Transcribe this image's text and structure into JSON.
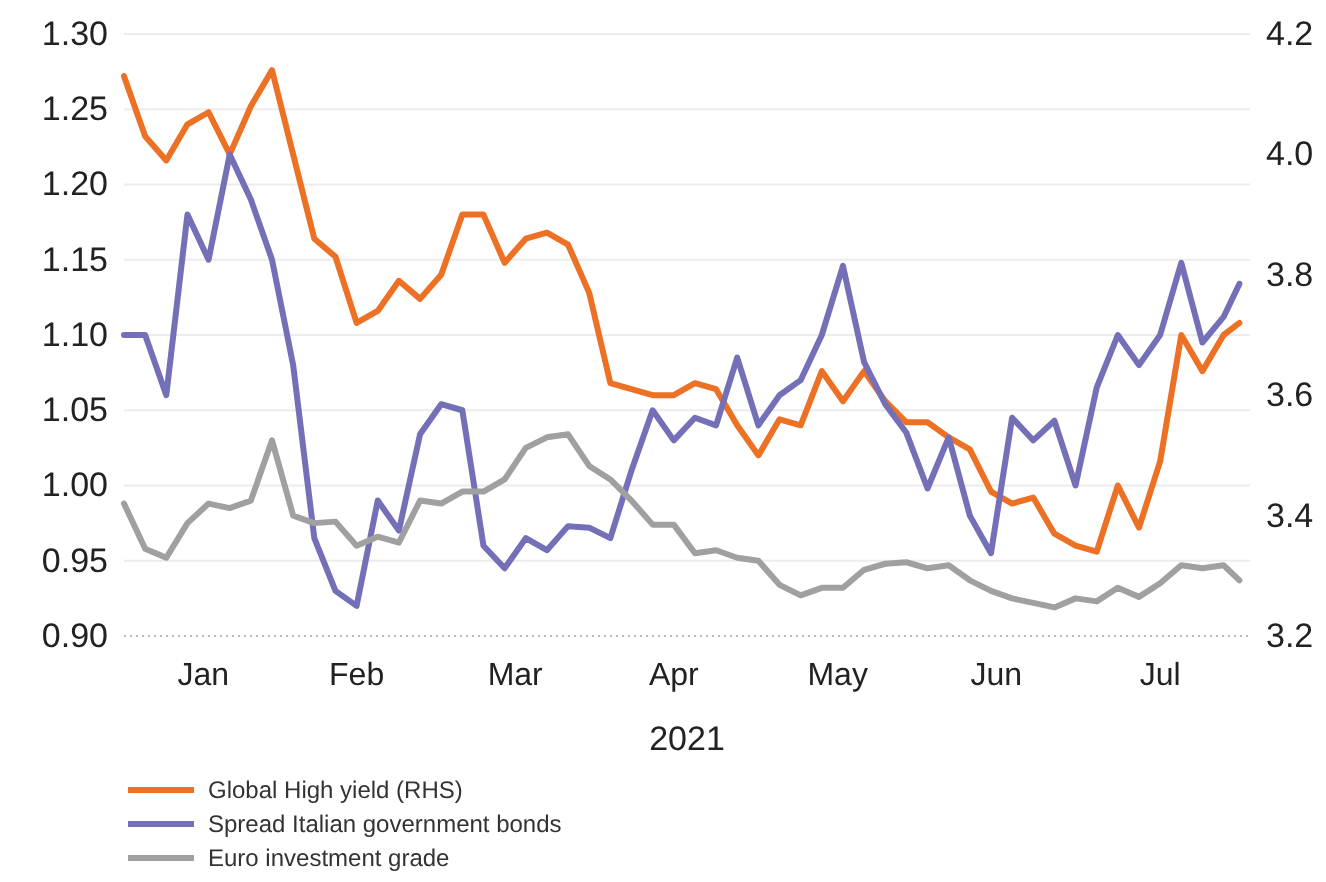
{
  "chart_data": {
    "type": "line",
    "xlabel": "2021",
    "legend": "bottom",
    "grid": "y",
    "line_style": "solid",
    "marker": "none",
    "x": [
      "2021-01-01",
      "2021-01-05",
      "2021-01-09",
      "2021-01-13",
      "2021-01-17",
      "2021-01-21",
      "2021-01-25",
      "2021-01-29",
      "2021-02-02",
      "2021-02-06",
      "2021-02-10",
      "2021-02-14",
      "2021-02-18",
      "2021-02-22",
      "2021-02-26",
      "2021-03-02",
      "2021-03-06",
      "2021-03-10",
      "2021-03-14",
      "2021-03-18",
      "2021-03-22",
      "2021-03-26",
      "2021-03-30",
      "2021-04-03",
      "2021-04-07",
      "2021-04-11",
      "2021-04-15",
      "2021-04-19",
      "2021-04-23",
      "2021-04-27",
      "2021-05-01",
      "2021-05-05",
      "2021-05-09",
      "2021-05-13",
      "2021-05-17",
      "2021-05-21",
      "2021-05-25",
      "2021-05-29",
      "2021-06-02",
      "2021-06-06",
      "2021-06-10",
      "2021-06-14",
      "2021-06-18",
      "2021-06-22",
      "2021-06-26",
      "2021-06-30",
      "2021-07-04",
      "2021-07-08",
      "2021-07-12",
      "2021-07-16",
      "2021-07-20",
      "2021-07-24",
      "2021-07-28",
      "2021-07-31"
    ],
    "xlim": [
      "2021-01-01",
      "2021-08-02"
    ],
    "xticks": [
      {
        "value": "2021-01-16",
        "label": "Jan"
      },
      {
        "value": "2021-02-14",
        "label": "Feb"
      },
      {
        "value": "2021-03-16",
        "label": "Mar"
      },
      {
        "value": "2021-04-15",
        "label": "Apr"
      },
      {
        "value": "2021-05-16",
        "label": "May"
      },
      {
        "value": "2021-06-15",
        "label": "Jun"
      },
      {
        "value": "2021-07-16",
        "label": "Jul"
      }
    ],
    "ylim": [
      0.9,
      1.3
    ],
    "yticks": [
      {
        "value": 0.9,
        "label": "0.90"
      },
      {
        "value": 0.95,
        "label": "0.95"
      },
      {
        "value": 1.0,
        "label": "1.00"
      },
      {
        "value": 1.05,
        "label": "1.05"
      },
      {
        "value": 1.1,
        "label": "1.10"
      },
      {
        "value": 1.15,
        "label": "1.15"
      },
      {
        "value": 1.2,
        "label": "1.20"
      },
      {
        "value": 1.25,
        "label": "1.25"
      },
      {
        "value": 1.3,
        "label": "1.30"
      }
    ],
    "y2lim": [
      3.2,
      4.2
    ],
    "y2ticks": [
      3.2,
      3.4,
      3.6,
      3.8,
      {
        "value": 4.0,
        "label": "4.0"
      },
      4.2
    ],
    "series": [
      {
        "name": "Global High yield (RHS)",
        "color": "#ed7125",
        "axis": "y2",
        "values": [
          4.13,
          4.03,
          3.99,
          4.05,
          4.07,
          4.0,
          4.08,
          4.14,
          4.0,
          3.86,
          3.83,
          3.72,
          3.74,
          3.79,
          3.76,
          3.8,
          3.9,
          3.9,
          3.82,
          3.86,
          3.87,
          3.85,
          3.77,
          3.62,
          3.61,
          3.6,
          3.6,
          3.62,
          3.61,
          3.55,
          3.5,
          3.56,
          3.55,
          3.64,
          3.59,
          3.64,
          3.59,
          3.555,
          3.555,
          3.53,
          3.51,
          3.44,
          3.42,
          3.43,
          3.37,
          3.35,
          3.34,
          3.45,
          3.38,
          3.49,
          3.7,
          3.64,
          3.7,
          3.72
        ]
      },
      {
        "name": "Spread Italian government bonds",
        "color": "#7470b8",
        "values": [
          1.1,
          1.1,
          1.06,
          1.18,
          1.15,
          1.22,
          1.19,
          1.15,
          1.08,
          0.965,
          0.93,
          0.92,
          0.99,
          0.97,
          1.034,
          1.054,
          1.05,
          0.96,
          0.945,
          0.965,
          0.957,
          0.973,
          0.972,
          0.965,
          1.01,
          1.05,
          1.03,
          1.045,
          1.04,
          1.085,
          1.04,
          1.06,
          1.07,
          1.1,
          1.146,
          1.082,
          1.054,
          1.035,
          0.998,
          1.032,
          0.98,
          0.955,
          1.045,
          1.03,
          1.043,
          1.0,
          1.065,
          1.1,
          1.08,
          1.1,
          1.148,
          1.095,
          1.112,
          1.134
        ]
      },
      {
        "name": "Euro investment grade",
        "color": "#a0a0a0",
        "values": [
          0.988,
          0.958,
          0.952,
          0.975,
          0.988,
          0.985,
          0.99,
          1.03,
          0.98,
          0.975,
          0.976,
          0.96,
          0.966,
          0.962,
          0.99,
          0.988,
          0.996,
          0.996,
          1.004,
          1.025,
          1.032,
          1.034,
          1.013,
          1.004,
          0.99,
          0.974,
          0.974,
          0.955,
          0.957,
          0.952,
          0.95,
          0.934,
          0.927,
          0.932,
          0.932,
          0.944,
          0.948,
          0.949,
          0.945,
          0.947,
          0.937,
          0.93,
          0.925,
          0.922,
          0.919,
          0.925,
          0.923,
          0.932,
          0.926,
          0.935,
          0.947,
          0.945,
          0.947,
          0.937
        ]
      }
    ]
  }
}
